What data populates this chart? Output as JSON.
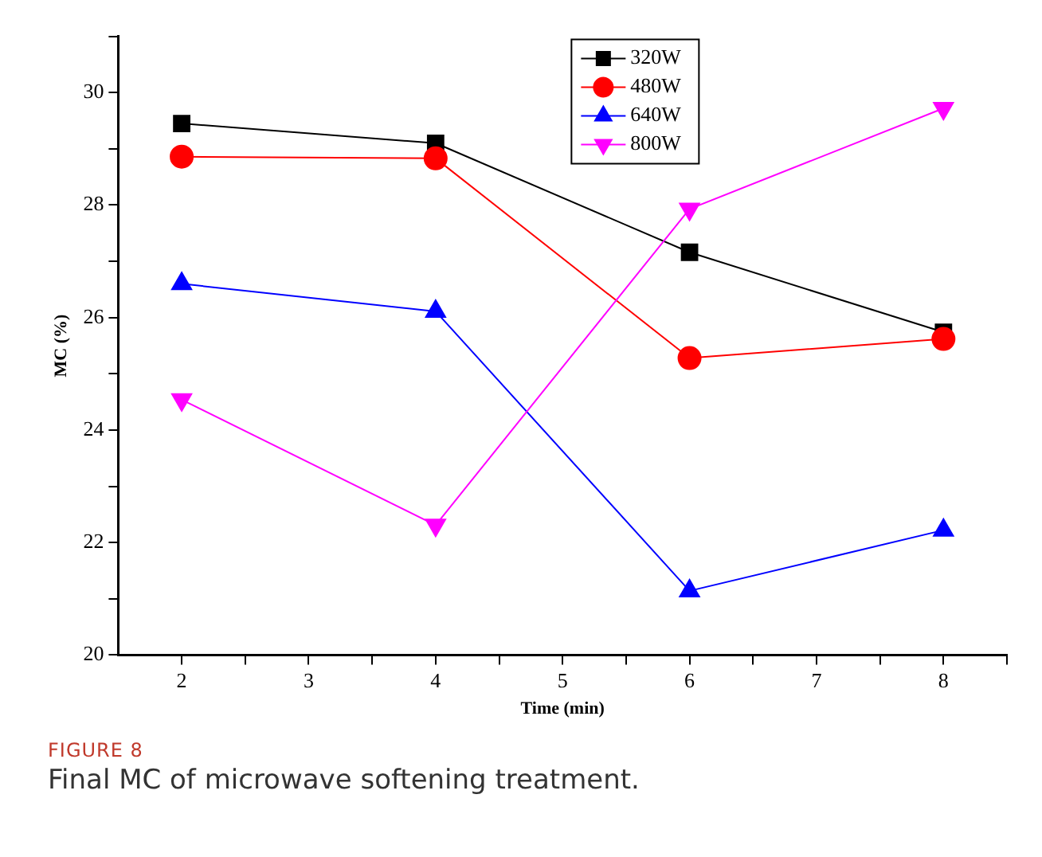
{
  "chart_data": {
    "type": "line",
    "xlabel": "Time (min)",
    "ylabel": "MC (%)",
    "x": [
      2,
      4,
      6,
      8
    ],
    "series": [
      {
        "name": "320W",
        "color": "#000000",
        "marker": "square",
        "values": [
          29.45,
          29.1,
          27.16,
          25.74
        ]
      },
      {
        "name": "480W",
        "color": "#ff0000",
        "marker": "circle",
        "values": [
          28.86,
          28.83,
          25.28,
          25.62
        ]
      },
      {
        "name": "640W",
        "color": "#0000ff",
        "marker": "triangle",
        "values": [
          26.6,
          26.11,
          21.14,
          22.22
        ]
      },
      {
        "name": "800W",
        "color": "#ff00ff",
        "marker": "triangle-down",
        "values": [
          24.54,
          22.31,
          27.93,
          29.72
        ]
      }
    ],
    "xlim": [
      1.5,
      8.5
    ],
    "xticks": [
      2,
      {
        "value": 2.5,
        "label": null
      },
      3,
      {
        "value": 3.5,
        "label": null
      },
      4,
      {
        "value": 4.5,
        "label": null
      },
      5,
      {
        "value": 5.5,
        "label": null
      },
      6,
      {
        "value": 6.5,
        "label": null
      },
      7,
      {
        "value": 7.5,
        "label": null
      },
      8,
      {
        "value": 8.5,
        "label": null
      }
    ],
    "ylim": [
      20,
      31
    ],
    "yticks": [
      20,
      {
        "value": 21,
        "label": null
      },
      22,
      {
        "value": 23,
        "label": null
      },
      24,
      {
        "value": 25,
        "label": null
      },
      26,
      {
        "value": 27,
        "label": null
      },
      28,
      {
        "value": 29,
        "label": null
      },
      30,
      {
        "value": 31,
        "label": null
      }
    ],
    "grid": false,
    "legend": "top right",
    "line_style": "solid",
    "annotations": [
      "FIGURE 8",
      "Final MC of microwave softening treatment."
    ]
  }
}
